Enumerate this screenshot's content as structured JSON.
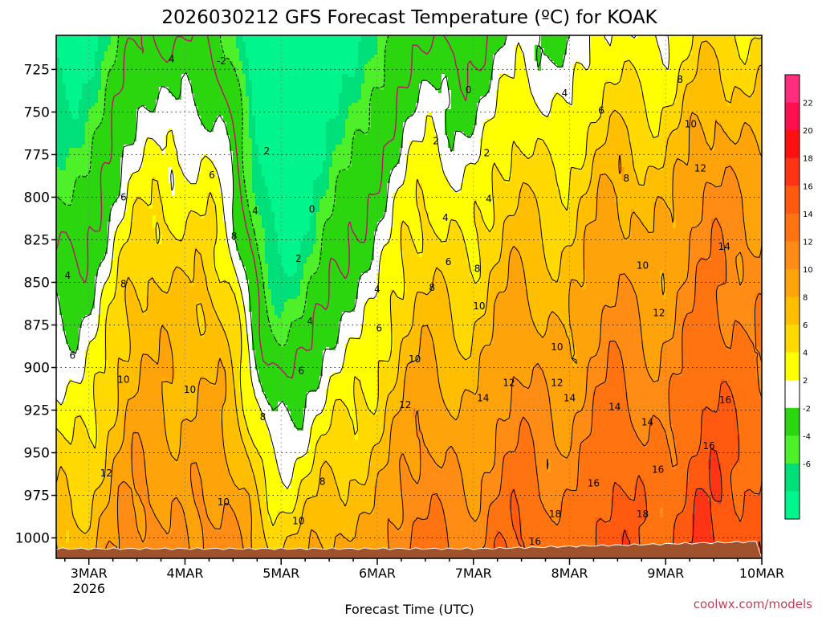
{
  "chart_data": {
    "type": "heatmap",
    "title": "2026030212 GFS Forecast Temperature (ºC) for KOAK",
    "xlabel": "Forecast Time (UTC)",
    "ylabel": "",
    "x_ticks": [
      {
        "label": "3MAR",
        "sub": "2026"
      },
      {
        "label": "4MAR",
        "sub": ""
      },
      {
        "label": "5MAR",
        "sub": ""
      },
      {
        "label": "6MAR",
        "sub": ""
      },
      {
        "label": "7MAR",
        "sub": ""
      },
      {
        "label": "8MAR",
        "sub": ""
      },
      {
        "label": "9MAR",
        "sub": ""
      },
      {
        "label": "10MAR",
        "sub": ""
      }
    ],
    "x_range_days": [
      -0.34,
      7.0
    ],
    "y_ticks": [
      725,
      750,
      775,
      800,
      825,
      850,
      875,
      900,
      925,
      950,
      975,
      1000
    ],
    "y_range_hpa": [
      1012,
      705
    ],
    "colorbar": {
      "labels": [
        "22",
        "20",
        "18",
        "16",
        "14",
        "12",
        "10",
        "8",
        "6",
        "4",
        "2",
        "-2",
        "-4",
        "-6"
      ],
      "levels": [
        24,
        22,
        20,
        18,
        16,
        14,
        12,
        10,
        8,
        6,
        4,
        2,
        -2,
        -4,
        -6,
        -8
      ],
      "colors": [
        "#ff2d7d",
        "#ff0f4f",
        "#ff1010",
        "#ff3414",
        "#ff5a10",
        "#ff7410",
        "#ff8c14",
        "#ffa30a",
        "#ffbf00",
        "#ffd900",
        "#ffff00",
        "#ffffff",
        "#2bd60f",
        "#4ef02a",
        "#00e07a",
        "#00f58c"
      ]
    },
    "isotherm_labels": [
      {
        "text": "-2",
        "day": 1.38,
        "hpa": 720
      },
      {
        "text": "4",
        "day": 0.86,
        "hpa": 719
      },
      {
        "text": "0",
        "day": 3.95,
        "hpa": 737
      },
      {
        "text": "4",
        "day": 4.95,
        "hpa": 739
      },
      {
        "text": "6",
        "day": 5.33,
        "hpa": 749
      },
      {
        "text": "8",
        "day": 6.15,
        "hpa": 731
      },
      {
        "text": "10",
        "day": 6.26,
        "hpa": 757
      },
      {
        "text": "2",
        "day": 1.85,
        "hpa": 773
      },
      {
        "text": "2",
        "day": 3.61,
        "hpa": 767
      },
      {
        "text": "2",
        "day": 4.14,
        "hpa": 774
      },
      {
        "text": "6",
        "day": 1.28,
        "hpa": 787
      },
      {
        "text": "8",
        "day": 5.59,
        "hpa": 789
      },
      {
        "text": "12",
        "day": 6.36,
        "hpa": 783
      },
      {
        "text": "6",
        "day": 0.36,
        "hpa": 800
      },
      {
        "text": "0",
        "day": 2.32,
        "hpa": 807
      },
      {
        "text": "4",
        "day": 1.73,
        "hpa": 808
      },
      {
        "text": "4",
        "day": 3.71,
        "hpa": 812
      },
      {
        "text": "4",
        "day": 4.16,
        "hpa": 801
      },
      {
        "text": "8",
        "day": 1.51,
        "hpa": 823
      },
      {
        "text": "2",
        "day": 2.18,
        "hpa": 836
      },
      {
        "text": "6",
        "day": 3.74,
        "hpa": 838
      },
      {
        "text": "8",
        "day": 4.04,
        "hpa": 842
      },
      {
        "text": "10",
        "day": 5.76,
        "hpa": 840
      },
      {
        "text": "14",
        "day": 6.61,
        "hpa": 829
      },
      {
        "text": "4",
        "day": -0.22,
        "hpa": 846
      },
      {
        "text": "8",
        "day": 0.36,
        "hpa": 851
      },
      {
        "text": "4",
        "day": 3.0,
        "hpa": 854
      },
      {
        "text": "8",
        "day": 3.57,
        "hpa": 853
      },
      {
        "text": "10",
        "day": 4.06,
        "hpa": 864
      },
      {
        "text": "12",
        "day": 5.93,
        "hpa": 868
      },
      {
        "text": "4",
        "day": 2.3,
        "hpa": 873
      },
      {
        "text": "6",
        "day": 3.02,
        "hpa": 877
      },
      {
        "text": "6",
        "day": -0.17,
        "hpa": 893
      },
      {
        "text": "10",
        "day": 4.87,
        "hpa": 888
      },
      {
        "text": "10",
        "day": 3.39,
        "hpa": 895
      },
      {
        "text": "6",
        "day": 2.21,
        "hpa": 902
      },
      {
        "text": "10",
        "day": 0.36,
        "hpa": 907
      },
      {
        "text": "10",
        "day": 1.05,
        "hpa": 913
      },
      {
        "text": "12",
        "day": 4.37,
        "hpa": 909
      },
      {
        "text": "12",
        "day": 4.87,
        "hpa": 909
      },
      {
        "text": "8",
        "day": 1.81,
        "hpa": 929
      },
      {
        "text": "12",
        "day": 3.29,
        "hpa": 922
      },
      {
        "text": "14",
        "day": 4.1,
        "hpa": 918
      },
      {
        "text": "14",
        "day": 5.0,
        "hpa": 918
      },
      {
        "text": "14",
        "day": 5.47,
        "hpa": 923
      },
      {
        "text": "14",
        "day": 5.81,
        "hpa": 932
      },
      {
        "text": "16",
        "day": 6.62,
        "hpa": 919
      },
      {
        "text": "16",
        "day": 6.45,
        "hpa": 946
      },
      {
        "text": "8",
        "day": 2.43,
        "hpa": 967
      },
      {
        "text": "12",
        "day": 0.18,
        "hpa": 962
      },
      {
        "text": "10",
        "day": 1.4,
        "hpa": 979
      },
      {
        "text": "16",
        "day": 5.25,
        "hpa": 968
      },
      {
        "text": "16",
        "day": 5.92,
        "hpa": 960
      },
      {
        "text": "10",
        "day": 2.18,
        "hpa": 990
      },
      {
        "text": "18",
        "day": 4.85,
        "hpa": 986
      },
      {
        "text": "18",
        "day": 5.76,
        "hpa": 986
      },
      {
        "text": "16",
        "day": 4.64,
        "hpa": 1002
      }
    ]
  },
  "watermark": "coolwx.com/models"
}
